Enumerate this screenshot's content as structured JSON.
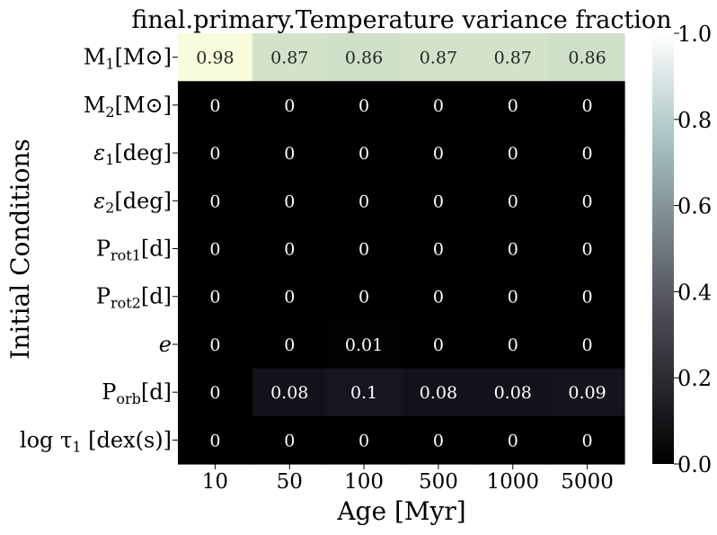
{
  "chart_data": {
    "type": "heatmap",
    "title": "final.primary.Temperature variance fraction",
    "xlabel": "Age [Myr]",
    "ylabel": "Initial Conditions",
    "x_categories": [
      "10",
      "50",
      "100",
      "500",
      "1000",
      "5000"
    ],
    "y_categories": [
      {
        "base": "M",
        "sub": "1",
        "suffix": "[M⊙]"
      },
      {
        "base": "M",
        "sub": "2",
        "suffix": "[M⊙]"
      },
      {
        "base": "ε",
        "sub": "1",
        "suffix": "[deg]",
        "italic": true
      },
      {
        "base": "ε",
        "sub": "2",
        "suffix": "[deg]",
        "italic": true
      },
      {
        "base": "P",
        "sub": "rot1",
        "suffix": "[d]"
      },
      {
        "base": "P",
        "sub": "rot2",
        "suffix": "[d]"
      },
      {
        "base": "e",
        "sub": "",
        "suffix": "",
        "italic": true
      },
      {
        "base": "P",
        "sub": "orb",
        "suffix": "[d]"
      },
      {
        "base": "log τ",
        "sub": "1",
        "suffix": " [dex(s)]"
      }
    ],
    "values": [
      [
        0.98,
        0.87,
        0.86,
        0.87,
        0.87,
        0.86
      ],
      [
        0,
        0,
        0,
        0,
        0,
        0
      ],
      [
        0,
        0,
        0,
        0,
        0,
        0
      ],
      [
        0,
        0,
        0,
        0,
        0,
        0
      ],
      [
        0,
        0,
        0,
        0,
        0,
        0
      ],
      [
        0,
        0,
        0,
        0,
        0,
        0
      ],
      [
        0,
        0,
        0.01,
        0,
        0,
        0
      ],
      [
        0,
        0.08,
        0.1,
        0.08,
        0.08,
        0.09
      ],
      [
        0,
        0,
        0,
        0,
        0,
        0
      ]
    ],
    "colormap": "bone",
    "vmin": 0,
    "vmax": 1,
    "colorbar_ticks": [
      "0.0",
      "0.2",
      "0.4",
      "0.6",
      "0.8",
      "1.0"
    ],
    "annotations": true
  }
}
